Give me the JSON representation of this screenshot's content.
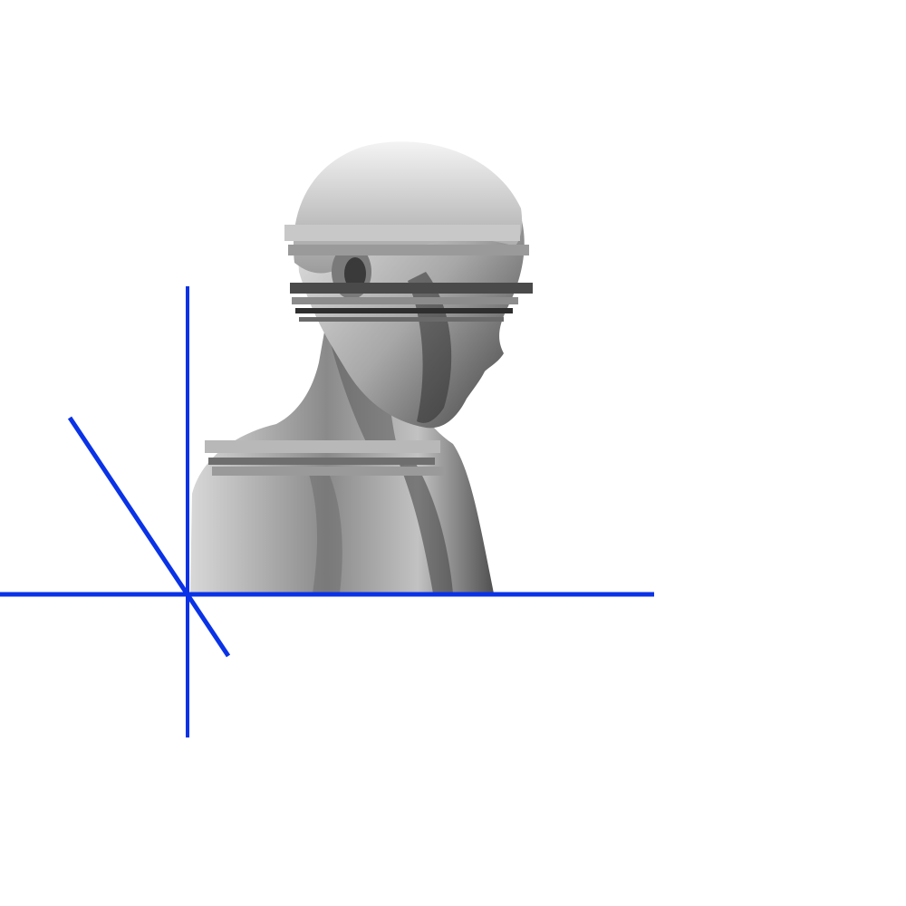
{
  "artwork": {
    "subject": "bust-statue-glitch",
    "colors": {
      "background": "#ffffff",
      "accent_lines": "#0a32e6",
      "statue_light": "#e4e4e4",
      "statue_mid": "#9a9a9a",
      "statue_dark": "#3a3a3a"
    }
  }
}
